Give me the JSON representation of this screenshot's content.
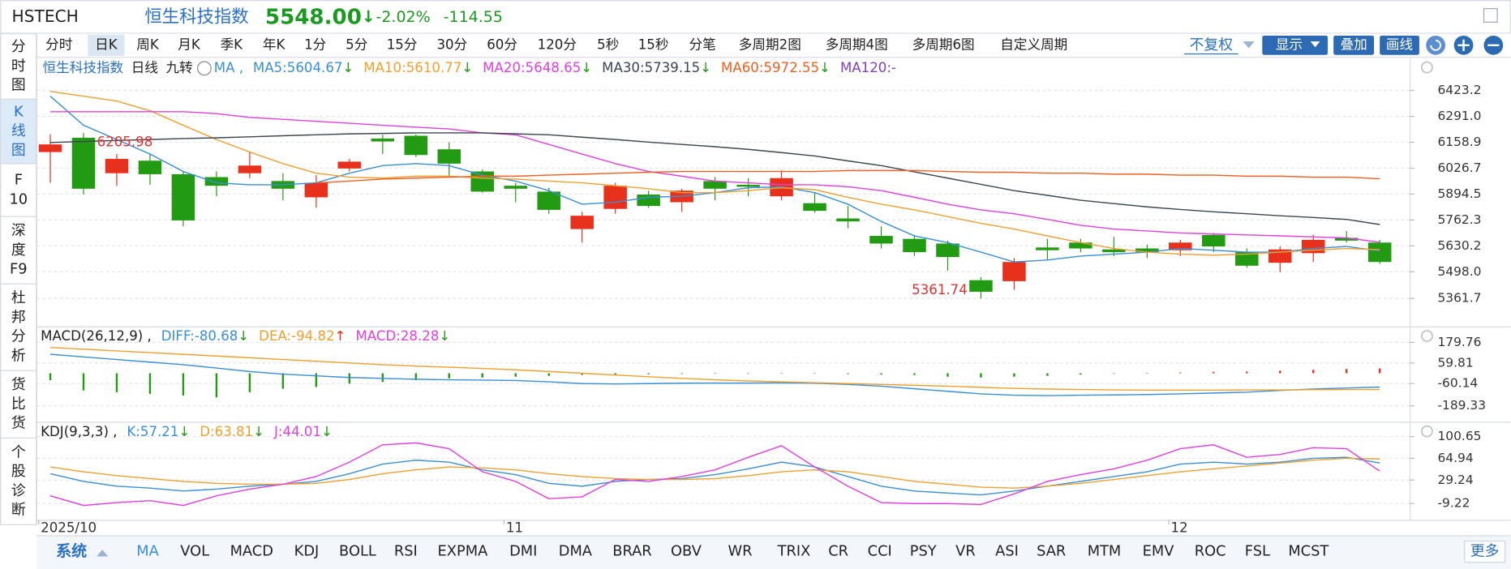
{
  "header": {
    "code": "HSTECH",
    "name": "恒生科技指数",
    "price": "5548.00",
    "arrow": "↓",
    "change_pct": "-2.02%",
    "change": -114.55
  },
  "period_tabs": {
    "items": [
      "分时",
      "日K",
      "周K",
      "月K",
      "季K",
      "年K",
      "1分",
      "5分",
      "15分",
      "30分",
      "60分",
      "120分",
      "5秒",
      "15秒",
      "分笔",
      "多周期2图",
      "多周期4图",
      "多周期6图",
      "自定义周期"
    ],
    "active": 1
  },
  "toolbar": {
    "adjust": "不复权",
    "buttons": [
      "显示",
      "叠加",
      "画线"
    ]
  },
  "sidebar": {
    "items": [
      [
        "分",
        "时",
        "图"
      ],
      [
        "K",
        "线",
        "图"
      ],
      [
        "F",
        "10"
      ],
      [
        "深",
        "度",
        "F9"
      ],
      [
        "杜",
        "邦",
        "分",
        "析"
      ],
      [
        "货",
        "比",
        "货"
      ],
      [
        "个",
        "股",
        "诊",
        "断"
      ]
    ],
    "active": 1
  },
  "chart": {
    "title": "恒生科技指数",
    "period": "日线",
    "nine": "九转",
    "ma_prefix": "MA ,",
    "categories": [
      "2025/10",
      null,
      null,
      null,
      null,
      null,
      null,
      null,
      null,
      null,
      null,
      null,
      null,
      null,
      "11",
      null,
      null,
      null,
      null,
      null,
      null,
      null,
      null,
      null,
      null,
      null,
      null,
      null,
      null,
      null,
      null,
      null,
      null,
      null,
      "12",
      null,
      null,
      null,
      null,
      null,
      null
    ],
    "up_color": "#e8311c",
    "down_color": "#229a12",
    "grid": true,
    "ylim": [
      5224.2,
      6580.4
    ],
    "yticks": [
      6423.2,
      {
        "value": 6291,
        "label": "6291.0"
      },
      6158.9,
      6026.7,
      5894.5,
      5762.3,
      5630.2,
      {
        "value": 5498,
        "label": "5498.0"
      },
      5361.7
    ],
    "candles": {
      "open": [
        6109,
        6182,
        6001,
        6065,
        5996,
        5981,
        6001,
        5961,
        5878,
        6025,
        6178,
        6192,
        6123,
        6010,
        5937,
        5907,
        5716,
        5819,
        5892,
        5853,
        5961,
        5942,
        5883,
        5848,
        5770,
        5681,
        5666,
        5642,
        5455,
        5450,
        5622,
        5647,
        5612,
        5617,
        5608,
        5686,
        5598,
        5544,
        5593,
        5671,
        5647
      ],
      "high": [
        6200,
        6205.98,
        6099,
        6099,
        6010,
        6010,
        6109,
        6001,
        5991,
        6074,
        6197,
        6199,
        6158,
        6020,
        5952,
        5927,
        5804,
        5952,
        5912,
        5922,
        5981,
        5976,
        6015,
        5902,
        5834,
        5730,
        5686,
        5657,
        5470,
        5568,
        5666,
        5666,
        5676,
        5637,
        5661,
        5696,
        5617,
        5627,
        5686,
        5706,
        5661
      ],
      "low": [
        5952,
        5892,
        5937,
        5942,
        5730,
        5883,
        5976,
        5863,
        5824,
        6010,
        6099,
        6084,
        5986,
        5902,
        5853,
        5794,
        5647,
        5794,
        5824,
        5804,
        5863,
        5883,
        5863,
        5799,
        5720,
        5617,
        5578,
        5504,
        5361.74,
        5406,
        5558,
        5598,
        5578,
        5568,
        5578,
        5598,
        5519,
        5495,
        5548,
        5647,
        5539
      ],
      "close": [
        6148,
        5922,
        6074,
        5996,
        5760,
        5937,
        6040,
        5922,
        5952,
        6060,
        6163,
        6094,
        6050,
        5907,
        5922,
        5814,
        5784,
        5937,
        5834,
        5912,
        5922,
        5932,
        5976,
        5809,
        5755,
        5642,
        5598,
        5573,
        5396,
        5548,
        5608,
        5617,
        5598,
        5598,
        5647,
        5627,
        5529,
        5612,
        5661,
        5657,
        5548
      ]
    },
    "ma": [
      {
        "label": "MA5:",
        "color": "#3a8fd8",
        "legend_value": 5604.67,
        "trend": "↓",
        "rising": false,
        "values": [
          6394,
          6246,
          6173,
          6099,
          6010,
          5952,
          5942,
          5942,
          5952,
          6001,
          6040,
          6050,
          6040,
          5991,
          5961,
          5912,
          5843,
          5853,
          5878,
          5883,
          5902,
          5927,
          5932,
          5902,
          5843,
          5755,
          5681,
          5647,
          5598,
          5548,
          5558,
          5578,
          5588,
          5598,
          5617,
          5608,
          5598,
          5598,
          5617,
          5627,
          5604.67
        ]
      },
      {
        "label": "MA10:",
        "color": "#f0a030",
        "legend_value": 5610.77,
        "trend": "↓",
        "rising": false,
        "values": [
          6418,
          6394,
          6369,
          6320,
          6246,
          6173,
          6109,
          6050,
          6001,
          5981,
          5976,
          5986,
          5986,
          5976,
          5971,
          5961,
          5952,
          5937,
          5922,
          5902,
          5902,
          5912,
          5927,
          5917,
          5878,
          5843,
          5814,
          5780,
          5745,
          5716,
          5681,
          5647,
          5617,
          5598,
          5588,
          5583,
          5588,
          5598,
          5608,
          5617,
          5610.77
        ]
      },
      {
        "label": "MA20:",
        "color": "#e040e0",
        "legend_value": 5648.65,
        "trend": "↓",
        "rising": false,
        "values": [
          6315,
          6315,
          6315,
          6315,
          6315,
          6305,
          6286,
          6276,
          6266,
          6256,
          6246,
          6236,
          6227,
          6207,
          6197,
          6148,
          6099,
          6050,
          6010,
          5986,
          5961,
          5952,
          5942,
          5942,
          5932,
          5912,
          5878,
          5843,
          5814,
          5794,
          5765,
          5735,
          5716,
          5706,
          5696,
          5691,
          5686,
          5681,
          5676,
          5671,
          5648.65
        ]
      },
      {
        "label": "MA30:",
        "color": "#3c4650",
        "legend_value": 5739.15,
        "trend": "↓",
        "rising": false,
        "values": [
          6158,
          6163,
          6168,
          6173,
          6178,
          6182,
          6187,
          6192,
          6197,
          6202,
          6204,
          6207,
          6207,
          6207,
          6202,
          6197,
          6185,
          6173,
          6160,
          6148,
          6136,
          6123,
          6106,
          6089,
          6064,
          6040,
          6008,
          5976,
          5944,
          5912,
          5888,
          5863,
          5846,
          5829,
          5816,
          5804,
          5794,
          5784,
          5775,
          5765,
          5739.15
        ]
      },
      {
        "label": "MA60:",
        "color": "#f06020",
        "legend_value": 5972.55,
        "trend": "↓",
        "rising": false,
        "values": [
          null,
          null,
          null,
          null,
          null,
          null,
          null,
          null,
          5952,
          5961,
          5971,
          5976,
          5981,
          5986,
          5986,
          5991,
          5996,
          6001,
          6006,
          6010,
          6010,
          6010,
          6010,
          6010,
          6015,
          6015,
          6015,
          6010,
          6006,
          6006,
          6001,
          6001,
          5996,
          5996,
          5991,
          5991,
          5986,
          5986,
          5981,
          5981,
          5972.55
        ]
      },
      {
        "label": "MA120:",
        "color": "#8040c0",
        "legend_value": "-"
      }
    ]
  },
  "macd": {
    "label": "MACD(26,12,9) ,",
    "ylim": [
      -270.6,
      255.8
    ],
    "yticks": [
      179.76,
      59.81,
      -60.14,
      -189.33
    ],
    "grid": true,
    "lines": [
      {
        "label": "DIFF:",
        "color": "#3a8fd8",
        "legend_value": -80.68,
        "trend": "↓",
        "rising": false,
        "values": [
          110,
          95,
          80,
          65,
          50,
          30,
          10,
          -5,
          -15,
          -25,
          -30,
          -35,
          -38,
          -40,
          -42,
          -50,
          -60,
          -62,
          -60,
          -58,
          -57,
          -57,
          -56,
          -58,
          -65,
          -75,
          -90,
          -105,
          -120,
          -128,
          -130,
          -128,
          -126,
          -124,
          -120,
          -115,
          -110,
          -100,
          -92,
          -86,
          -80.68
        ]
      },
      {
        "label": "DEA:",
        "color": "#f0a030",
        "legend_value": -94.82,
        "trend": "↑",
        "rising": true,
        "values": [
          150,
          140,
          130,
          120,
          110,
          100,
          90,
          80,
          70,
          60,
          50,
          42,
          35,
          28,
          20,
          10,
          0,
          -10,
          -20,
          -30,
          -38,
          -45,
          -50,
          -55,
          -60,
          -65,
          -70,
          -75,
          -82,
          -88,
          -92,
          -95,
          -97,
          -98,
          -98,
          -98,
          -97,
          -97,
          -96,
          -95,
          -94.82
        ]
      }
    ],
    "bars": {
      "label": "MACD:",
      "color": "#e040e0",
      "legend_value": 28.28,
      "trend": "↓",
      "rising": false,
      "values": [
        -40,
        -100,
        -110,
        -120,
        -130,
        -140,
        -110,
        -90,
        -80,
        -60,
        -50,
        -40,
        -30,
        -25,
        -20,
        -15,
        -10,
        -8,
        -6,
        -4,
        -3,
        -2,
        -1,
        -1,
        -5,
        -8,
        -10,
        -20,
        -25,
        -20,
        -15,
        -8,
        -3,
        2,
        5,
        8,
        10,
        15,
        20,
        25,
        28.28
      ]
    }
  },
  "kdj": {
    "label": "KDJ(9,3,3) ,",
    "ylim": [
      -33.0,
      118.7
    ],
    "yticks": [
      100.65,
      64.94,
      29.24,
      -9.22
    ],
    "grid": true,
    "lines": [
      {
        "label": "K:",
        "color": "#3a8fd8",
        "legend_value": 57.21,
        "trend": "↓",
        "rising": false,
        "values": [
          39.7,
          27.0,
          19.1,
          16.0,
          11.2,
          14.4,
          19.1,
          22.3,
          27.0,
          39.7,
          55.5,
          61.8,
          58.6,
          46.0,
          38.1,
          23.9,
          19.1,
          27.0,
          30.2,
          31.7,
          38.1,
          47.6,
          58.6,
          50.7,
          34.9,
          19.1,
          11.2,
          8.0,
          4.9,
          11.2,
          19.1,
          27.0,
          34.9,
          42.8,
          55.5,
          58.6,
          55.5,
          58.6,
          64.9,
          66.5,
          57.21
        ]
      },
      {
        "label": "D:",
        "color": "#f0a030",
        "legend_value": 63.81,
        "trend": "↓",
        "rising": false,
        "values": [
          50.7,
          42.8,
          36.5,
          31.7,
          27.0,
          23.9,
          22.3,
          22.3,
          23.9,
          30.2,
          39.7,
          46.0,
          50.7,
          49.1,
          46.0,
          39.7,
          34.9,
          31.7,
          30.2,
          30.2,
          31.7,
          36.5,
          42.8,
          46.0,
          42.8,
          34.9,
          27.0,
          22.3,
          17.5,
          16.0,
          19.1,
          23.9,
          30.2,
          36.5,
          42.8,
          47.6,
          52.3,
          57.0,
          61.8,
          64.9,
          63.81
        ]
      },
      {
        "label": "J:",
        "color": "#e040e0",
        "legend_value": 44.01,
        "trend": "↓",
        "rising": false,
        "values": [
          3.3,
          -12.5,
          -7.7,
          -4.6,
          -12.5,
          3.3,
          14.4,
          22.3,
          34.9,
          58.6,
          87.1,
          90.2,
          80.7,
          42.8,
          27.0,
          -1.4,
          1.7,
          30.2,
          27.0,
          34.9,
          46.0,
          66.5,
          85.5,
          50.7,
          19.1,
          -7.7,
          -9.3,
          -9.3,
          -10.9,
          6.5,
          27.0,
          38.1,
          47.6,
          61.8,
          80.7,
          87.1,
          66.5,
          71.3,
          82.3,
          80.7,
          44.01
        ]
      }
    ]
  },
  "indicator_tabs": {
    "group": "系统",
    "items": [
      "MA",
      "VOL",
      "MACD",
      "KDJ",
      "BOLL",
      "RSI",
      "EXPMA",
      "DMI",
      "DMA",
      "BRAR",
      "OBV",
      "WR",
      "TRIX",
      "CR",
      "CCI",
      "PSY",
      "VR",
      "ASI",
      "SAR",
      "MTM",
      "EMV",
      "ROC",
      "FSL",
      "MCST"
    ],
    "active": 0,
    "more": "更多"
  }
}
